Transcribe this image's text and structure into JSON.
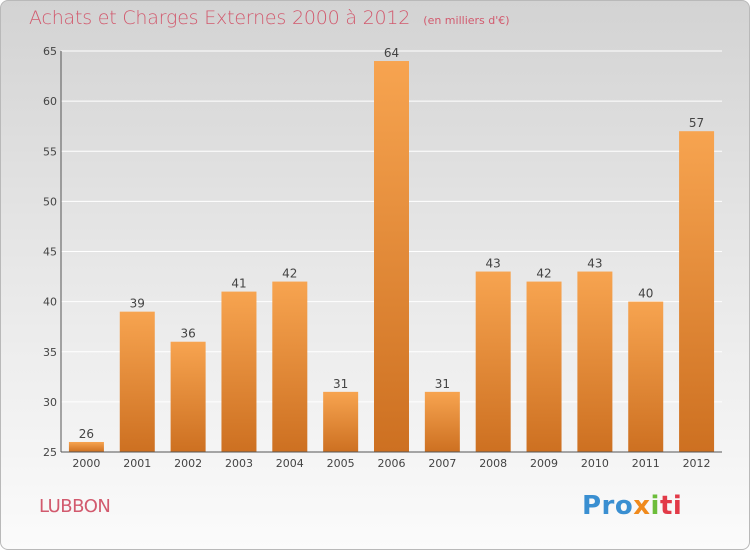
{
  "title": "Achats et Charges Externes 2000 à 2012",
  "unit_note": "(en milliers d'€)",
  "commune": "LUBBON",
  "logo": [
    "Pro",
    "x",
    "i",
    "ti"
  ],
  "colors": {
    "bar_light": "#f7a450",
    "bar_dark": "#cd7021",
    "title": "#d25a6e"
  },
  "chart_data": {
    "type": "bar",
    "categories": [
      "2000",
      "2001",
      "2002",
      "2003",
      "2004",
      "2005",
      "2006",
      "2007",
      "2008",
      "2009",
      "2010",
      "2011",
      "2012"
    ],
    "values": [
      26,
      39,
      36,
      41,
      42,
      31,
      64,
      31,
      43,
      42,
      43,
      40,
      57
    ],
    "ylim": [
      25,
      65
    ],
    "yticks": [
      25,
      30,
      35,
      40,
      45,
      50,
      55,
      60,
      65
    ],
    "grid": true,
    "xlabel": "",
    "ylabel": ""
  }
}
